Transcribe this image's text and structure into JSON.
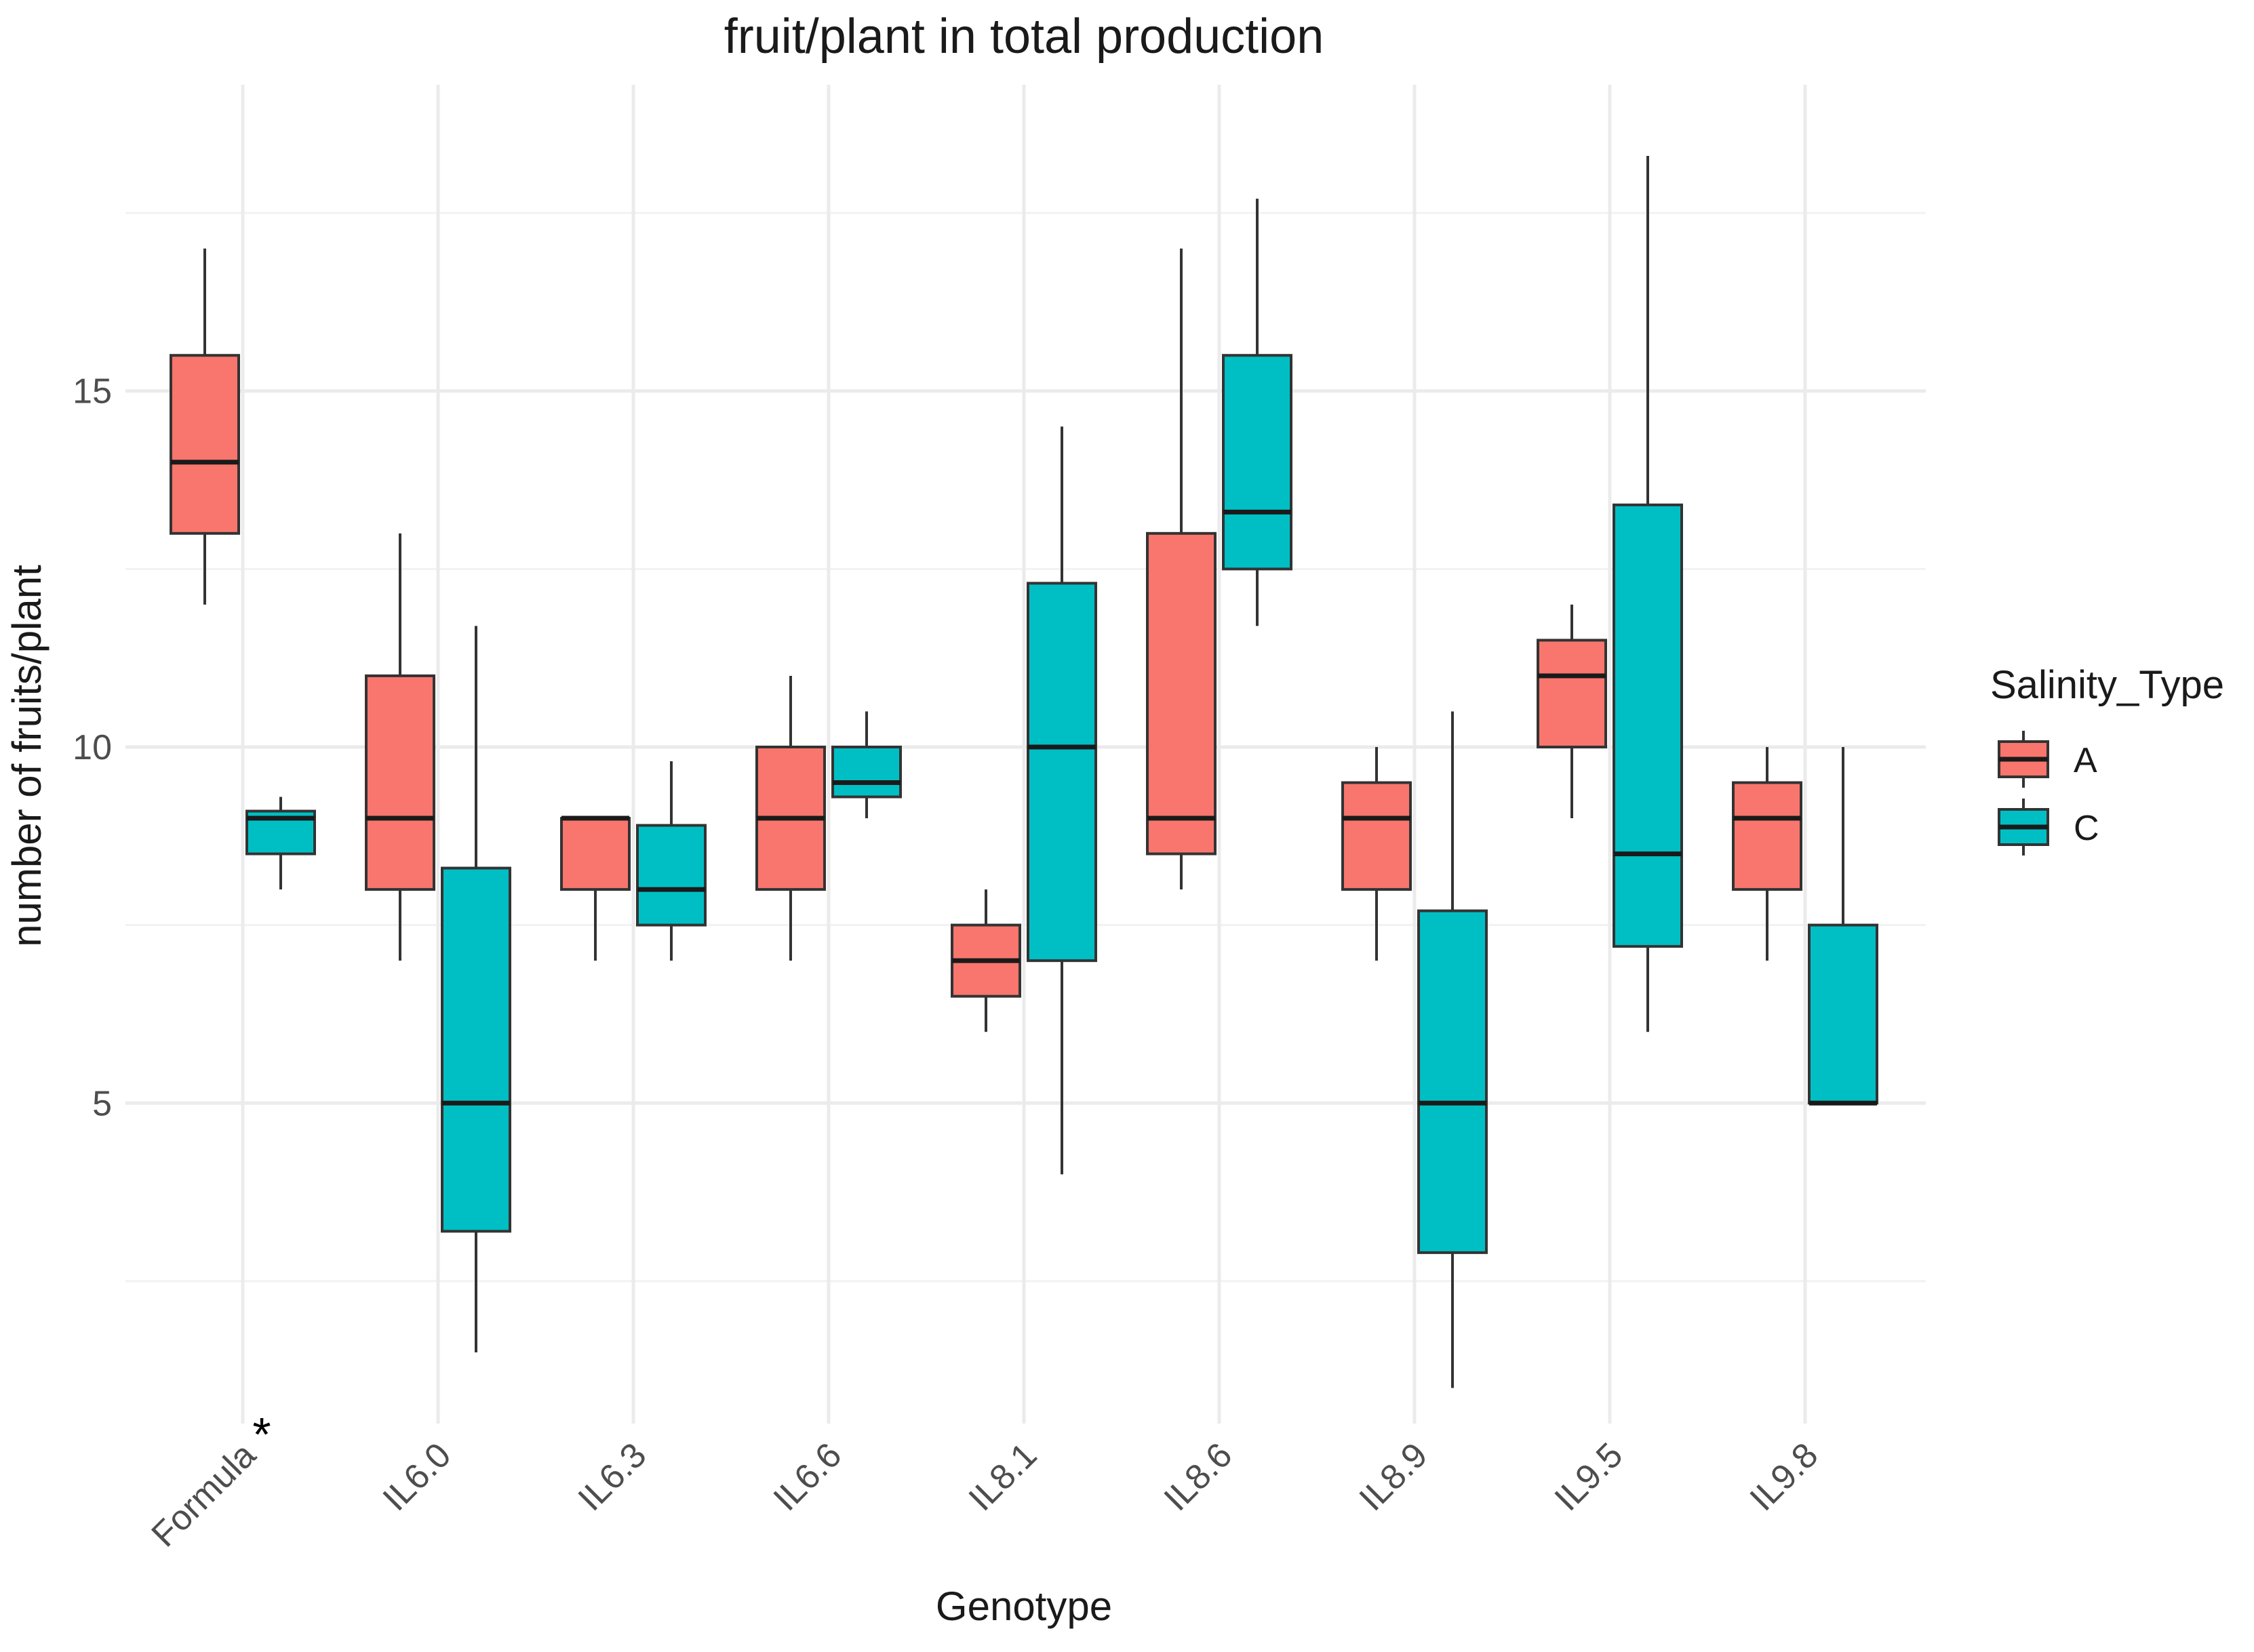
{
  "chart_data": {
    "type": "box",
    "title": "fruit/plant in total production",
    "xlabel": "Genotype",
    "ylabel": "number of fruits/plant",
    "ylim": [
      0.5,
      19.3
    ],
    "yticks": [
      5,
      10,
      15
    ],
    "grid": true,
    "legend": {
      "title": "Salinity_Type",
      "placement": "right"
    },
    "categories": [
      "Formula",
      "IL6.0",
      "IL6.3",
      "IL6.6",
      "IL8.1",
      "IL8.6",
      "IL8.9",
      "IL9.5",
      "IL9.8"
    ],
    "series": [
      {
        "name": "A",
        "color": "#F8766D",
        "boxes": [
          {
            "min": 12,
            "q1": 13,
            "median": 14,
            "q3": 15.5,
            "max": 17
          },
          {
            "min": 7,
            "q1": 8,
            "median": 9,
            "q3": 11,
            "max": 13
          },
          {
            "min": 7,
            "q1": 8,
            "median": 9,
            "q3": 9,
            "max": 9
          },
          {
            "min": 7,
            "q1": 8,
            "median": 9,
            "q3": 10,
            "max": 11
          },
          {
            "min": 6,
            "q1": 6.5,
            "median": 7,
            "q3": 7.5,
            "max": 8
          },
          {
            "min": 8,
            "q1": 8.5,
            "median": 9,
            "q3": 13,
            "max": 17
          },
          {
            "min": 7,
            "q1": 8,
            "median": 9,
            "q3": 9.5,
            "max": 10
          },
          {
            "min": 9,
            "q1": 10,
            "median": 11,
            "q3": 11.5,
            "max": 12
          },
          {
            "min": 7,
            "q1": 8,
            "median": 9,
            "q3": 9.5,
            "max": 10
          }
        ]
      },
      {
        "name": "C",
        "color": "#00BFC4",
        "boxes": [
          {
            "min": 8,
            "q1": 8.5,
            "median": 9,
            "q3": 9.1,
            "max": 9.3
          },
          {
            "min": 1.5,
            "q1": 3.2,
            "median": 5,
            "q3": 8.3,
            "max": 11.7
          },
          {
            "min": 7,
            "q1": 7.5,
            "median": 8,
            "q3": 8.9,
            "max": 9.8
          },
          {
            "min": 9,
            "q1": 9.3,
            "median": 9.5,
            "q3": 10,
            "max": 10.5
          },
          {
            "min": 4,
            "q1": 7,
            "median": 10,
            "q3": 12.3,
            "max": 14.5
          },
          {
            "min": 11.7,
            "q1": 12.5,
            "median": 13.3,
            "q3": 15.5,
            "max": 17.7
          },
          {
            "min": 1,
            "q1": 2.9,
            "median": 5,
            "q3": 7.7,
            "max": 10.5
          },
          {
            "min": 6,
            "q1": 7.2,
            "median": 8.5,
            "q3": 13.4,
            "max": 18.3
          },
          {
            "min": 5,
            "q1": 5,
            "median": 5,
            "q3": 7.5,
            "max": 10
          }
        ]
      }
    ],
    "annotations": [
      {
        "category": "Formula",
        "text": "*"
      }
    ]
  }
}
